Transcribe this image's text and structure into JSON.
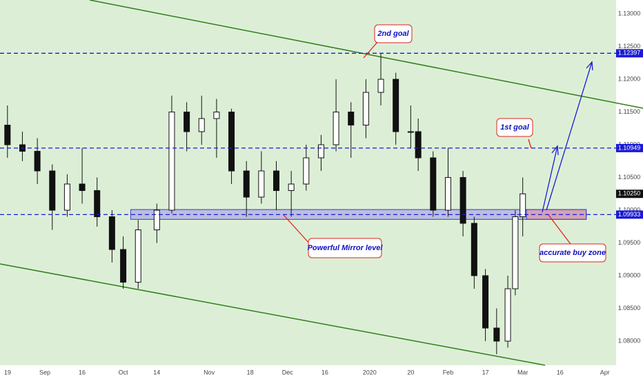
{
  "chart_data": {
    "type": "candlestick",
    "x": [
      0,
      4,
      8,
      12,
      16,
      20,
      24,
      28,
      31,
      35,
      40,
      44,
      48,
      52,
      56,
      60,
      64,
      68,
      72,
      76,
      80,
      84,
      88,
      92,
      96,
      100,
      104,
      108,
      110,
      114,
      118,
      122,
      125,
      128,
      131,
      134,
      136,
      138
    ],
    "open": [
      1.113,
      1.11,
      1.109,
      1.106,
      1.1,
      1.104,
      1.103,
      1.099,
      1.094,
      1.089,
      1.097,
      1.1,
      1.115,
      1.112,
      1.114,
      1.115,
      1.106,
      1.102,
      1.106,
      1.103,
      1.104,
      1.108,
      1.11,
      1.115,
      1.113,
      1.118,
      1.12,
      1.112,
      1.112,
      1.108,
      1.1,
      1.105,
      1.098,
      1.09,
      1.082,
      1.08,
      1.088,
      1.099
    ],
    "high": [
      1.116,
      1.112,
      1.111,
      1.107,
      1.1055,
      1.1095,
      1.105,
      1.1,
      1.096,
      1.0985,
      1.101,
      1.1175,
      1.1165,
      1.1175,
      1.117,
      1.1155,
      1.1075,
      1.109,
      1.1075,
      1.106,
      1.11,
      1.1115,
      1.12,
      1.1165,
      1.12,
      1.124,
      1.121,
      1.116,
      1.114,
      1.109,
      1.1095,
      1.106,
      1.099,
      1.091,
      1.085,
      1.09,
      1.1,
      1.105
    ],
    "low": [
      1.108,
      1.1075,
      1.104,
      1.097,
      1.099,
      1.101,
      1.0975,
      1.092,
      1.088,
      1.088,
      1.095,
      1.0995,
      1.109,
      1.11,
      1.108,
      1.104,
      1.099,
      1.101,
      1.1,
      1.099,
      1.103,
      1.106,
      1.109,
      1.108,
      1.111,
      1.116,
      1.11,
      1.1095,
      1.106,
      1.099,
      1.099,
      1.096,
      1.088,
      1.08,
      1.078,
      1.079,
      1.087,
      1.096
    ],
    "close": [
      1.11,
      1.109,
      1.106,
      1.1,
      1.104,
      1.103,
      1.099,
      1.094,
      1.089,
      1.097,
      1.1,
      1.115,
      1.112,
      1.114,
      1.115,
      1.106,
      1.102,
      1.106,
      1.103,
      1.104,
      1.108,
      1.11,
      1.115,
      1.113,
      1.118,
      1.12,
      1.112,
      1.112,
      1.108,
      1.1,
      1.105,
      1.098,
      1.09,
      1.082,
      1.08,
      1.088,
      1.099,
      1.1025
    ],
    "xlim": [
      -2,
      163
    ],
    "ylim": [
      1.07632,
      1.13211
    ],
    "xticks": [
      {
        "value": 0,
        "label": "19"
      },
      {
        "value": 10,
        "label": "Sep"
      },
      {
        "value": 20,
        "label": "16"
      },
      {
        "value": 31,
        "label": "Oct"
      },
      {
        "value": 40,
        "label": "14"
      },
      {
        "value": 54,
        "label": "Nov"
      },
      {
        "value": 65,
        "label": "18"
      },
      {
        "value": 75,
        "label": "Dec"
      },
      {
        "value": 85,
        "label": "16"
      },
      {
        "value": 97,
        "label": "2020"
      },
      {
        "value": 108,
        "label": "20"
      },
      {
        "value": 118,
        "label": "Feb"
      },
      {
        "value": 128,
        "label": "17"
      },
      {
        "value": 138,
        "label": "Mar"
      },
      {
        "value": 148,
        "label": "16"
      },
      {
        "value": 160,
        "label": "Apr"
      }
    ],
    "yticks": [
      {
        "value": 1.08,
        "label": "1.08000"
      },
      {
        "value": 1.085,
        "label": "1.08500"
      },
      {
        "value": 1.09,
        "label": "1.09000"
      },
      {
        "value": 1.095,
        "label": "1.09500"
      },
      {
        "value": 1.1,
        "label": "1.10000"
      },
      {
        "value": 1.105,
        "label": "1.10500"
      },
      {
        "value": 1.11,
        "label": "1.11000"
      },
      {
        "value": 1.115,
        "label": "1.11500"
      },
      {
        "value": 1.12,
        "label": "1.12000"
      },
      {
        "value": 1.125,
        "label": "1.12500"
      },
      {
        "value": 1.13,
        "label": "1.13000"
      }
    ],
    "levels": [
      1.12397,
      1.10949,
      1.09933
    ],
    "last_price": {
      "value": 1.1025,
      "label": "1.10250"
    },
    "zone": {
      "x": [
        33,
        155
      ],
      "y": [
        1.0986,
        1.1001
      ]
    },
    "buy_zone": {
      "x": [
        139,
        155
      ],
      "y": [
        1.0986,
        1.1001
      ]
    },
    "level_color": "#1a1ad6",
    "up_color": "#ffffff",
    "down_color": "#111111",
    "annotations": [
      "2nd goal",
      "1st goal",
      "Powerful Mirror level",
      "accurate buy zone"
    ]
  }
}
